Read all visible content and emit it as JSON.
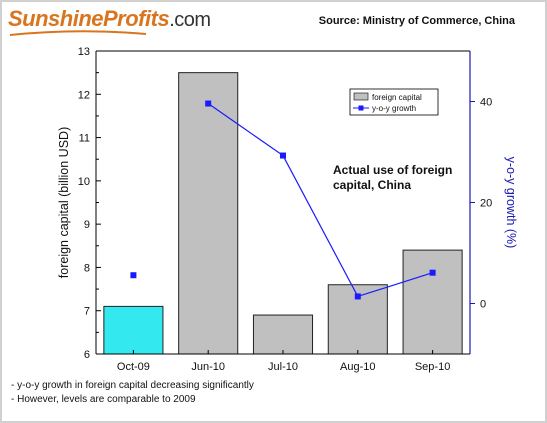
{
  "header": {
    "logo_brand": "SunshineProfits",
    "logo_tld": ".com",
    "source": "Source: Ministry of Commerce, China"
  },
  "colors": {
    "bar": "#c0c0c0",
    "bar_highlight": "#33e8ef",
    "line": "#1a1aff",
    "right_axis": "#1a1ab4",
    "brand": "#d9751e"
  },
  "chart_data": {
    "type": "bar",
    "categories": [
      "Oct-09",
      "Jun-10",
      "Jul-10",
      "Aug-10",
      "Sep-10"
    ],
    "series": [
      {
        "name": "foreign capital",
        "type": "bar",
        "axis": "left",
        "values": [
          7.1,
          12.5,
          6.9,
          7.6,
          8.4
        ],
        "highlight_index": 0
      },
      {
        "name": "y-o-y growth",
        "type": "line",
        "axis": "right",
        "values": [
          5.6,
          39.6,
          29.3,
          1.4,
          6.1
        ],
        "connected_from_index": 1
      }
    ],
    "ylabel": "foreign capital (billion USD)",
    "ylim": [
      6,
      13
    ],
    "yticks": [
      6,
      7,
      8,
      9,
      10,
      11,
      12,
      13
    ],
    "y2label": "y-o-y growth (%)",
    "y2lim": [
      -10,
      50
    ],
    "y2ticks": [
      0,
      20,
      40
    ],
    "annotation": [
      "Actual use of foreign",
      "capital, China"
    ],
    "legend_position": "top-right"
  },
  "notes": [
    "- y-o-y growth in foreign capital decreasing significantly",
    "- However, levels are comparable to 2009"
  ]
}
